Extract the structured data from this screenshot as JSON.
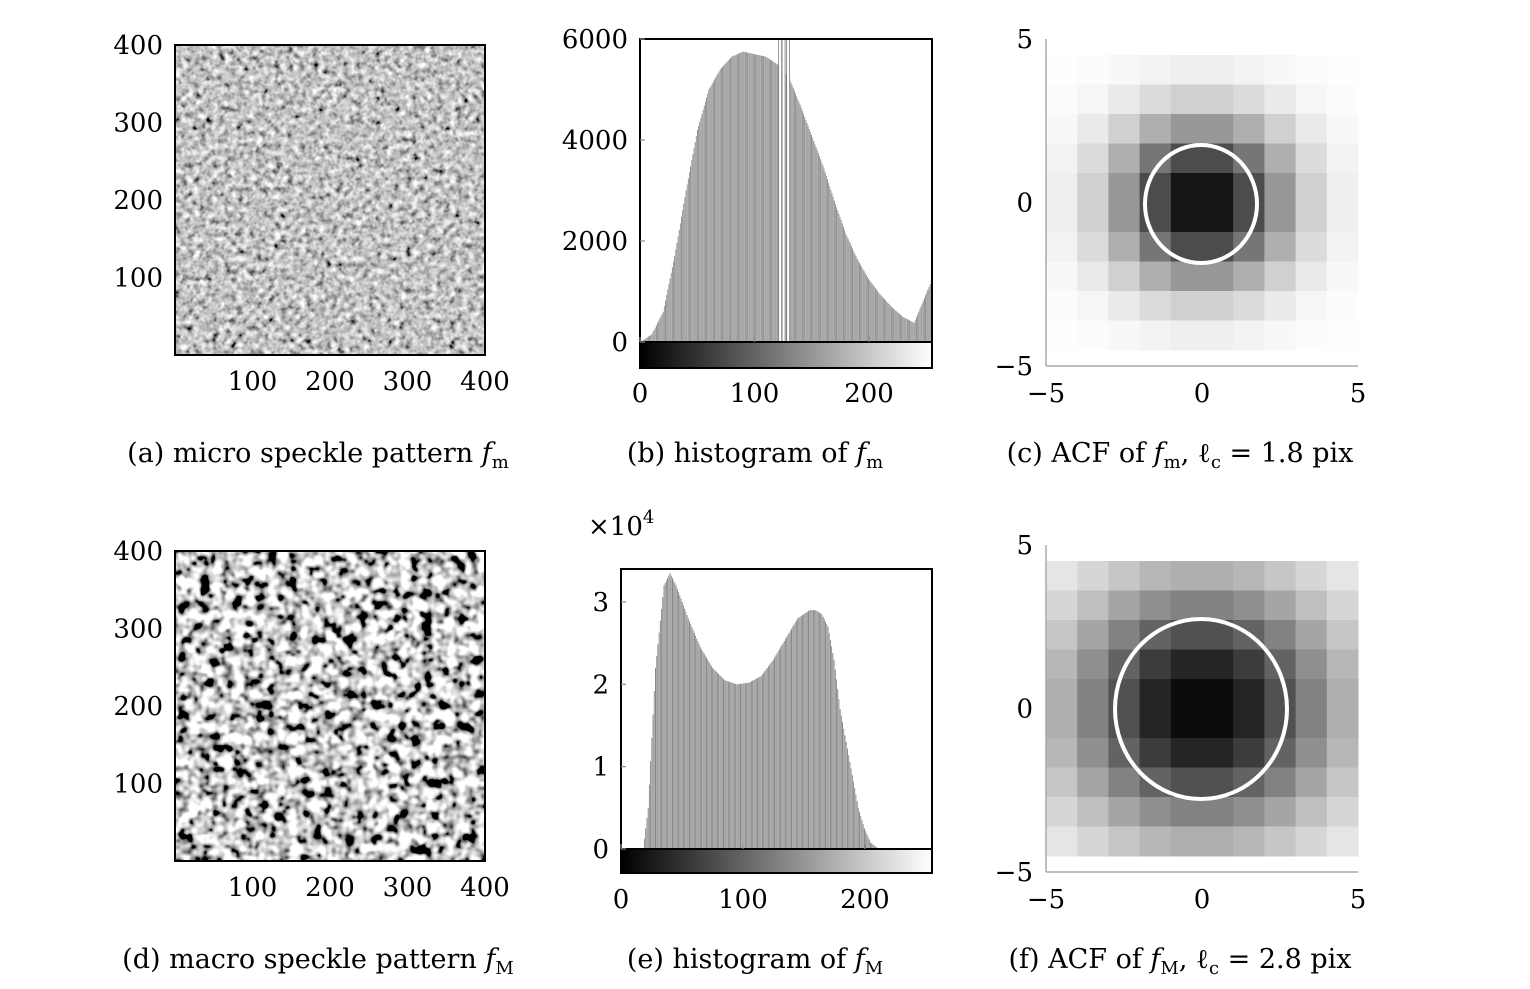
{
  "chart_data": [
    {
      "type": "heatmap",
      "panel": "a",
      "caption": "(a) micro speckle pattern ",
      "caption_symbol": "f",
      "caption_subscript": "m",
      "xlim": [
        0,
        400
      ],
      "ylim": [
        0,
        400
      ],
      "xticks": [
        100,
        200,
        300,
        400
      ],
      "yticks": [
        100,
        200,
        300,
        400
      ],
      "texture": "micro"
    },
    {
      "type": "bar",
      "panel": "b",
      "caption": "(b) histogram of ",
      "caption_symbol": "f",
      "caption_subscript": "m",
      "xlim": [
        0,
        255
      ],
      "ylim": [
        0,
        6000
      ],
      "xticks": [
        0,
        100,
        200
      ],
      "yticks": [
        0,
        2000,
        4000,
        6000
      ],
      "x": [
        0,
        10,
        20,
        30,
        40,
        50,
        60,
        70,
        80,
        90,
        100,
        110,
        120,
        130,
        140,
        150,
        160,
        170,
        180,
        190,
        200,
        210,
        220,
        230,
        240,
        255
      ],
      "values": [
        0,
        150,
        600,
        1700,
        3000,
        4200,
        5000,
        5400,
        5650,
        5750,
        5700,
        5650,
        5500,
        5250,
        4700,
        4100,
        3500,
        2800,
        2150,
        1650,
        1250,
        950,
        700,
        500,
        380,
        1200
      ],
      "spikes_x": [
        122,
        125,
        129
      ],
      "spikes_value": 6000
    },
    {
      "type": "heatmap",
      "panel": "c",
      "caption": "(c) ACF of ",
      "caption_symbol": "f",
      "caption_subscript": "m",
      "caption_suffix": ", ℓ",
      "caption_suffix_subscript": "c",
      "caption_value": " = 1.8 pix",
      "xlim": [
        -5,
        5
      ],
      "ylim": [
        -5,
        5
      ],
      "xticks": [
        -5,
        0,
        5
      ],
      "yticks": [
        -5,
        0,
        5
      ],
      "correlation_length": 1.8
    },
    {
      "type": "heatmap",
      "panel": "d",
      "caption": "(d) macro speckle pattern ",
      "caption_symbol": "f",
      "caption_subscript": "M",
      "xlim": [
        0,
        400
      ],
      "ylim": [
        0,
        400
      ],
      "xticks": [
        100,
        200,
        300,
        400
      ],
      "yticks": [
        100,
        200,
        300,
        400
      ],
      "texture": "macro"
    },
    {
      "type": "bar",
      "panel": "e",
      "caption": "(e) histogram of ",
      "caption_symbol": "f",
      "caption_subscript": "M",
      "multiplier": "×10",
      "multiplier_exp": "4",
      "xlim": [
        0,
        255
      ],
      "ylim": [
        0,
        3.4
      ],
      "xticks": [
        0,
        100,
        200
      ],
      "yticks": [
        0,
        1,
        2,
        3
      ],
      "x": [
        0,
        10,
        18,
        22,
        28,
        35,
        40,
        45,
        55,
        65,
        75,
        85,
        95,
        105,
        115,
        125,
        135,
        145,
        155,
        160,
        165,
        170,
        175,
        180,
        185,
        190,
        195,
        200,
        205,
        210,
        215,
        220,
        230,
        255
      ],
      "values": [
        0,
        0,
        0,
        0.5,
        2.2,
        3.2,
        3.35,
        3.2,
        2.8,
        2.45,
        2.2,
        2.05,
        2.0,
        2.02,
        2.1,
        2.3,
        2.55,
        2.8,
        2.9,
        2.9,
        2.85,
        2.7,
        2.3,
        1.7,
        1.3,
        0.9,
        0.5,
        0.25,
        0.08,
        0.02,
        0,
        0,
        0,
        0
      ]
    },
    {
      "type": "heatmap",
      "panel": "f",
      "caption": "(f) ACF of ",
      "caption_symbol": "f",
      "caption_subscript": "M",
      "caption_suffix": ", ℓ",
      "caption_suffix_subscript": "c",
      "caption_value": " = 2.8 pix",
      "xlim": [
        -5,
        5
      ],
      "ylim": [
        -5,
        5
      ],
      "xticks": [
        -5,
        0,
        5
      ],
      "yticks": [
        -5,
        0,
        5
      ],
      "correlation_length": 2.8
    }
  ]
}
